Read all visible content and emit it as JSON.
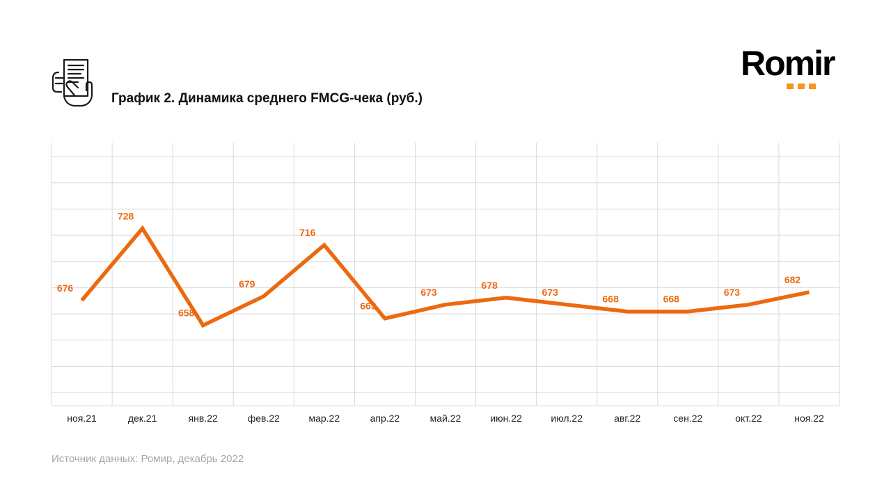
{
  "header": {
    "icon": "receipt-hand-icon",
    "title": "График 2. Динамика среднего FMCG-чека (руб.)"
  },
  "logo": {
    "word": "Romir",
    "dots_color": "#F7941D"
  },
  "footer": {
    "source": "Источник данных: Ромир, декабрь 2022"
  },
  "chart_data": {
    "type": "line",
    "title": "График 2. Динамика среднего FMCG-чека (руб.)",
    "xlabel": "",
    "ylabel": "",
    "categories": [
      "ноя.21",
      "дек.21",
      "янв.22",
      "фев.22",
      "мар.22",
      "апр.22",
      "май.22",
      "июн.22",
      "июл.22",
      "авг.22",
      "сен.22",
      "окт.22",
      "ноя.22"
    ],
    "series": [
      {
        "values": [
          676,
          728,
          658,
          679,
          716,
          663,
          673,
          678,
          673,
          668,
          668,
          673,
          682
        ],
        "color": "#EC6A0F"
      }
    ],
    "ylim": [
      600,
      790
    ],
    "grid": true,
    "legend": "none",
    "data_labels": true
  }
}
